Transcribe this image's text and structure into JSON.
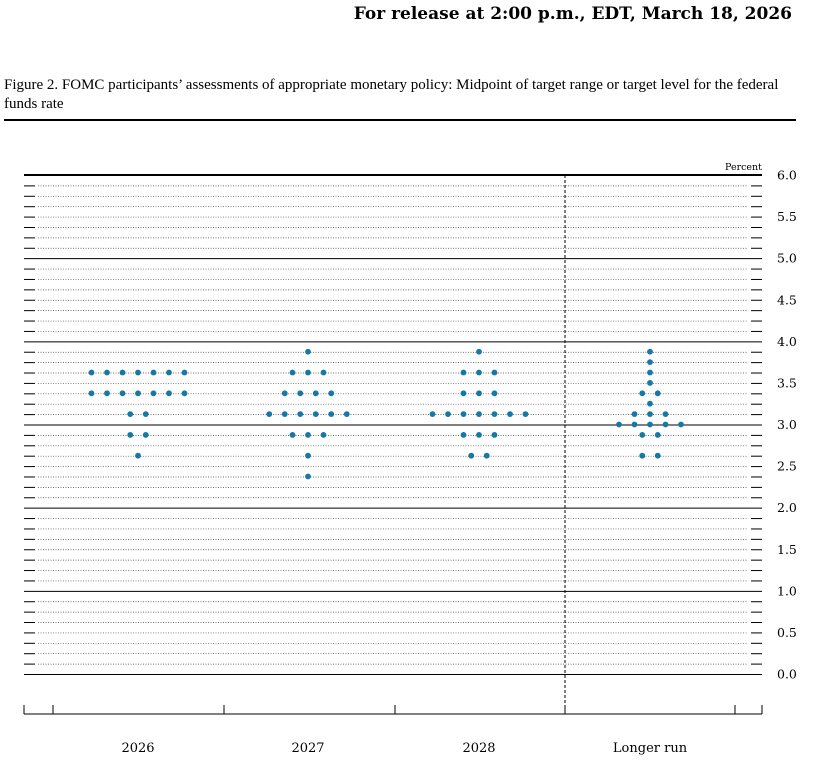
{
  "header": {
    "release": "For release at 2:00 p.m., EDT, March 18, 2026"
  },
  "figure": {
    "caption": "Figure 2. FOMC participants’ assessments of appropriate monetary policy: Midpoint of target range or target level for the federal funds rate"
  },
  "colors": {
    "dot": "#1479a6",
    "grid": "#000000"
  },
  "chart_data": {
    "type": "scatter",
    "subtype": "dot-plot",
    "title": "",
    "ylabel": "Percent",
    "ylim": [
      0.0,
      6.0
    ],
    "yticks": [
      "0.0",
      "0.5",
      "1.0",
      "1.5",
      "2.0",
      "2.5",
      "3.0",
      "3.5",
      "4.0",
      "4.5",
      "5.0",
      "5.5",
      "6.0"
    ],
    "categories": [
      "2026",
      "2027",
      "2028",
      "Longer run"
    ],
    "separator_before": "Longer run",
    "dots": [
      {
        "category": "2026",
        "rates": [
          {
            "value": 3.625,
            "count": 7
          },
          {
            "value": 3.375,
            "count": 7
          },
          {
            "value": 3.125,
            "count": 2
          },
          {
            "value": 2.875,
            "count": 2
          },
          {
            "value": 2.625,
            "count": 1
          }
        ]
      },
      {
        "category": "2027",
        "rates": [
          {
            "value": 3.875,
            "count": 1
          },
          {
            "value": 3.625,
            "count": 3
          },
          {
            "value": 3.375,
            "count": 4
          },
          {
            "value": 3.125,
            "count": 6
          },
          {
            "value": 2.875,
            "count": 3
          },
          {
            "value": 2.625,
            "count": 1
          },
          {
            "value": 2.375,
            "count": 1
          }
        ]
      },
      {
        "category": "2028",
        "rates": [
          {
            "value": 3.875,
            "count": 1
          },
          {
            "value": 3.625,
            "count": 3
          },
          {
            "value": 3.375,
            "count": 3
          },
          {
            "value": 3.125,
            "count": 7
          },
          {
            "value": 2.875,
            "count": 3
          },
          {
            "value": 2.625,
            "count": 2
          }
        ]
      },
      {
        "category": "Longer run",
        "rates": [
          {
            "value": 3.875,
            "count": 1
          },
          {
            "value": 3.75,
            "count": 1
          },
          {
            "value": 3.625,
            "count": 1
          },
          {
            "value": 3.5,
            "count": 1
          },
          {
            "value": 3.375,
            "count": 2
          },
          {
            "value": 3.25,
            "count": 1
          },
          {
            "value": 3.125,
            "count": 3
          },
          {
            "value": 3.0,
            "count": 5
          },
          {
            "value": 2.875,
            "count": 2
          },
          {
            "value": 2.625,
            "count": 2
          }
        ]
      }
    ]
  }
}
